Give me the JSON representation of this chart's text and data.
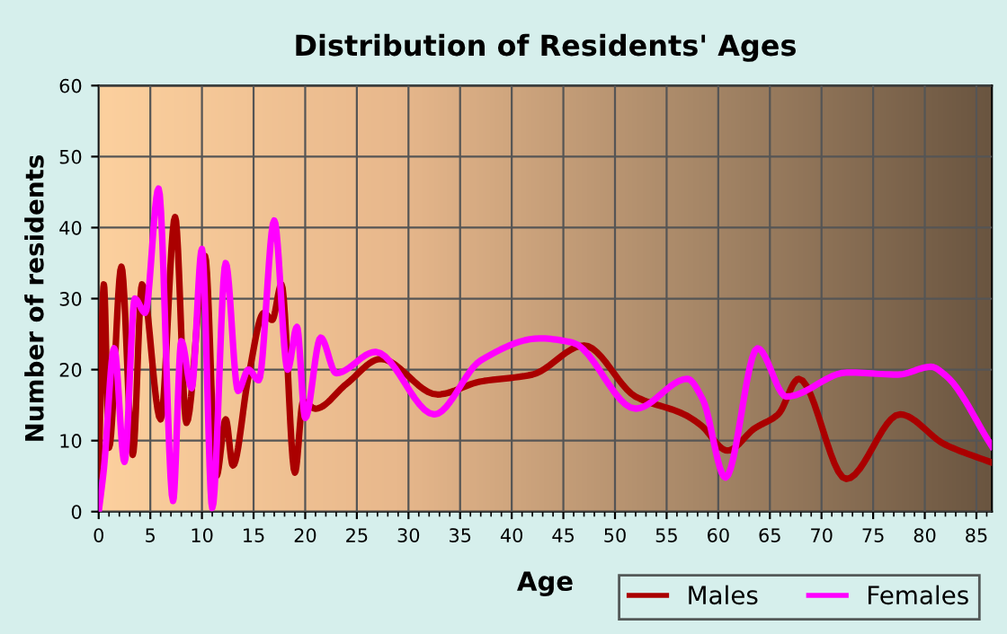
{
  "chart_data": {
    "type": "line",
    "title": "Distribution of Residents' Ages",
    "xlabel": "Age",
    "ylabel": "Number of residents",
    "series": [
      {
        "name": "Males",
        "color": "#aa0000",
        "x": [
          0,
          0.5,
          1,
          2.2,
          3.3,
          4.2,
          6,
          7.4,
          8.5,
          10.3,
          11.4,
          12.3,
          13,
          14.5,
          16,
          16.8,
          17.7,
          19,
          19.8,
          21,
          24,
          27.3,
          32.8,
          36.9,
          42,
          47,
          52,
          56.7,
          58.3,
          60.9,
          63.5,
          65.8,
          67.8,
          72.4,
          77.6,
          81.9,
          86.5
        ],
        "values": [
          5,
          32,
          9,
          34.5,
          8,
          32,
          13,
          41.5,
          12.5,
          36,
          5,
          13,
          6.5,
          19,
          28,
          27,
          32,
          5.5,
          15.5,
          14.5,
          18,
          21.5,
          16.5,
          18.3,
          19.3,
          23.4,
          16.2,
          13.7,
          12.2,
          8.6,
          11.7,
          13.7,
          18.7,
          4.6,
          13.7,
          9.5,
          6.9
        ]
      },
      {
        "name": "Females",
        "color": "#ff00ff",
        "x": [
          0,
          0.5,
          1.5,
          2.5,
          3.5,
          4.5,
          5.8,
          7.2,
          8,
          9,
          10,
          11,
          12.3,
          13.5,
          14.5,
          15.5,
          17,
          18.3,
          19.2,
          20,
          21.5,
          23,
          26.8,
          32.5,
          37,
          42.7,
          45.9,
          52,
          57,
          58.5,
          60.7,
          63.8,
          66.6,
          72.5,
          77.4,
          80.6,
          82,
          86.5
        ],
        "values": [
          0,
          6,
          23,
          7,
          30,
          28,
          45.5,
          1.5,
          24,
          17.4,
          37,
          0.5,
          35,
          17,
          20,
          18.5,
          41,
          20,
          26,
          13.2,
          24.5,
          19.5,
          22.5,
          13.7,
          21.3,
          24.4,
          23.8,
          14.5,
          18.7,
          15.8,
          4.8,
          23,
          16.2,
          19.6,
          19.3,
          20.4,
          19.2,
          9.2
        ]
      }
    ],
    "xlim": [
      0,
      86.5
    ],
    "xticks": [
      0,
      5,
      10,
      15,
      20,
      25,
      30,
      35,
      40,
      45,
      50,
      55,
      60,
      65,
      70,
      75,
      80,
      85
    ],
    "ylim": [
      0,
      60
    ],
    "yticks": [
      0,
      10,
      20,
      30,
      40,
      50,
      60
    ],
    "grid": true,
    "legend": "bottom right",
    "marker": "none",
    "line_style": "solid"
  }
}
